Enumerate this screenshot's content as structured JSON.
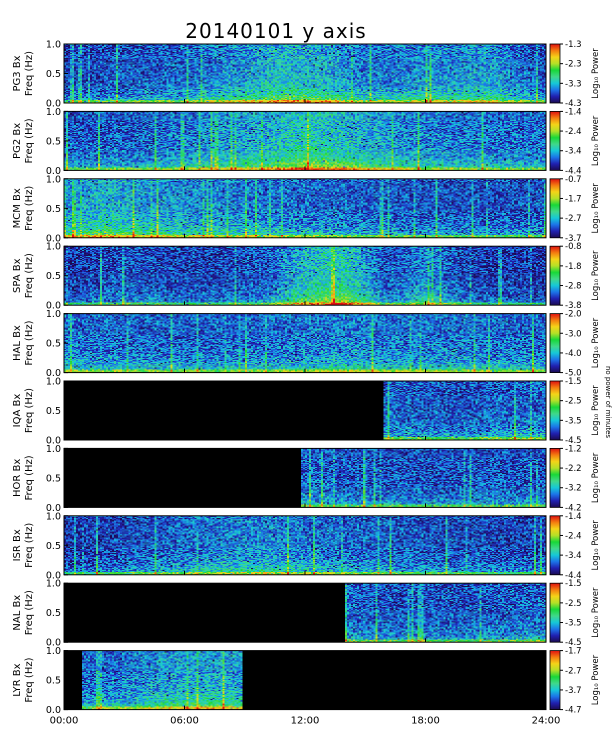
{
  "title": "20140101 y axis",
  "colors": {
    "background": "#ffffff",
    "no_data": "#000000",
    "frame": "#000000",
    "colormap": [
      "#1b0a50",
      "#2020b0",
      "#1c74e8",
      "#16c8d8",
      "#40d88a",
      "#18d838",
      "#b4e028",
      "#f4d418",
      "#f47c10",
      "#e01010"
    ]
  },
  "chart_data": {
    "type": "heatmap",
    "title": "20140101 y axis",
    "xlabel": "",
    "x_range_hours": [
      0,
      24
    ],
    "x_ticks": [
      "00:00",
      "06:00",
      "12:00",
      "18:00",
      "24:00"
    ],
    "y_ticks": [
      "0.0",
      "0.5",
      "1.0"
    ],
    "ylim_hz": [
      0,
      1.0
    ],
    "colorbar_label": "Log₁₀ Power",
    "side_note": "no power of minutes",
    "panels": [
      {
        "station": "PG3",
        "ylabel_line1": "PG3 Bx",
        "ylabel_line2": "Freq (Hz)",
        "clim": [
          -4.3,
          -1.3
        ],
        "cb_ticks": [
          "-1.3",
          "-2.3",
          "-3.3",
          "-4.3"
        ],
        "data_hours": [
          0,
          24
        ],
        "activity": [
          [
            0,
            0.25
          ],
          [
            3,
            0.3
          ],
          [
            6,
            0.35
          ],
          [
            9,
            0.5
          ],
          [
            11,
            0.6
          ],
          [
            13,
            0.55
          ],
          [
            15,
            0.4
          ],
          [
            18,
            0.45
          ],
          [
            21,
            0.5
          ],
          [
            24,
            0.3
          ]
        ]
      },
      {
        "station": "PG2",
        "ylabel_line1": "PG2 Bx",
        "ylabel_line2": "Freq (Hz)",
        "clim": [
          -4.4,
          -1.4
        ],
        "cb_ticks": [
          "-1.4",
          "-2.4",
          "-3.4",
          "-4.4"
        ],
        "data_hours": [
          0,
          24
        ],
        "activity": [
          [
            0,
            0.3
          ],
          [
            4,
            0.35
          ],
          [
            7,
            0.45
          ],
          [
            10,
            0.55
          ],
          [
            12,
            0.7
          ],
          [
            14,
            0.6
          ],
          [
            17,
            0.45
          ],
          [
            20,
            0.4
          ],
          [
            24,
            0.35
          ]
        ]
      },
      {
        "station": "MCM",
        "ylabel_line1": "MCM Bx",
        "ylabel_line2": "Freq (Hz)",
        "clim": [
          -3.7,
          -0.7
        ],
        "cb_ticks": [
          "-0.7",
          "-1.7",
          "-2.7",
          "-3.7"
        ],
        "data_hours": [
          0,
          24
        ],
        "activity": [
          [
            0,
            0.45
          ],
          [
            2,
            0.6
          ],
          [
            4,
            0.5
          ],
          [
            7,
            0.45
          ],
          [
            10,
            0.4
          ],
          [
            14,
            0.35
          ],
          [
            18,
            0.3
          ],
          [
            24,
            0.3
          ]
        ]
      },
      {
        "station": "SPA",
        "ylabel_line1": "SPA Bx",
        "ylabel_line2": "Freq (Hz)",
        "clim": [
          -3.8,
          -0.8
        ],
        "cb_ticks": [
          "-0.8",
          "-1.8",
          "-2.8",
          "-3.8"
        ],
        "data_hours": [
          0,
          24
        ],
        "activity": [
          [
            0,
            0.2
          ],
          [
            3,
            0.3
          ],
          [
            6,
            0.25
          ],
          [
            10,
            0.3
          ],
          [
            12,
            0.6
          ],
          [
            14,
            0.7
          ],
          [
            16,
            0.3
          ],
          [
            18,
            0.45
          ],
          [
            20,
            0.25
          ],
          [
            24,
            0.2
          ]
        ]
      },
      {
        "station": "HAL",
        "ylabel_line1": "HAL Bx",
        "ylabel_line2": "Freq (Hz)",
        "clim": [
          -5.0,
          -2.0
        ],
        "cb_ticks": [
          "-2.0",
          "-3.0",
          "-4.0",
          "-5.0"
        ],
        "data_hours": [
          0,
          24
        ],
        "activity": [
          [
            0,
            0.4
          ],
          [
            4,
            0.35
          ],
          [
            8,
            0.35
          ],
          [
            12,
            0.4
          ],
          [
            14,
            0.45
          ],
          [
            16,
            0.4
          ],
          [
            20,
            0.4
          ],
          [
            24,
            0.35
          ]
        ]
      },
      {
        "station": "IQA",
        "ylabel_line1": "IQA Bx",
        "ylabel_line2": "Freq (Hz)",
        "clim": [
          -4.5,
          -1.5
        ],
        "cb_ticks": [
          "-1.5",
          "-2.5",
          "-3.5",
          "-4.5"
        ],
        "data_hours": [
          15.9,
          24
        ],
        "activity": [
          [
            16,
            0.35
          ],
          [
            18,
            0.3
          ],
          [
            20,
            0.3
          ],
          [
            22,
            0.35
          ],
          [
            24,
            0.35
          ]
        ]
      },
      {
        "station": "HOR",
        "ylabel_line1": "HOR Bx",
        "ylabel_line2": "Freq (Hz)",
        "clim": [
          -4.2,
          -1.2
        ],
        "cb_ticks": [
          "-1.2",
          "-2.2",
          "-3.2",
          "-4.2"
        ],
        "data_hours": [
          11.8,
          24
        ],
        "activity": [
          [
            12,
            0.35
          ],
          [
            14,
            0.3
          ],
          [
            17,
            0.3
          ],
          [
            20,
            0.3
          ],
          [
            24,
            0.3
          ]
        ]
      },
      {
        "station": "ISR",
        "ylabel_line1": "ISR Bx",
        "ylabel_line2": "Freq (Hz)",
        "clim": [
          -4.4,
          -1.4
        ],
        "cb_ticks": [
          "-1.4",
          "-2.4",
          "-3.4",
          "-4.4"
        ],
        "data_hours": [
          0,
          24
        ],
        "activity": [
          [
            0,
            0.2
          ],
          [
            4,
            0.3
          ],
          [
            7,
            0.4
          ],
          [
            10,
            0.45
          ],
          [
            12,
            0.4
          ],
          [
            14,
            0.35
          ],
          [
            18,
            0.3
          ],
          [
            24,
            0.25
          ]
        ]
      },
      {
        "station": "NAL",
        "ylabel_line1": "NAL Bx",
        "ylabel_line2": "Freq (Hz)",
        "clim": [
          -4.5,
          -1.5
        ],
        "cb_ticks": [
          "-1.5",
          "-2.5",
          "-3.5",
          "-4.5"
        ],
        "data_hours": [
          14.0,
          24
        ],
        "activity": [
          [
            14,
            0.35
          ],
          [
            16,
            0.3
          ],
          [
            20,
            0.3
          ],
          [
            24,
            0.35
          ]
        ]
      },
      {
        "station": "LYR",
        "ylabel_line1": "LYR Bx",
        "ylabel_line2": "Freq (Hz)",
        "clim": [
          -4.7,
          -1.7
        ],
        "cb_ticks": [
          "-1.7",
          "-2.7",
          "-3.7",
          "-4.7"
        ],
        "data_hours": [
          0.9,
          8.9
        ],
        "activity": [
          [
            1,
            0.35
          ],
          [
            3,
            0.4
          ],
          [
            5,
            0.5
          ],
          [
            7,
            0.55
          ],
          [
            9,
            0.5
          ]
        ]
      }
    ]
  }
}
